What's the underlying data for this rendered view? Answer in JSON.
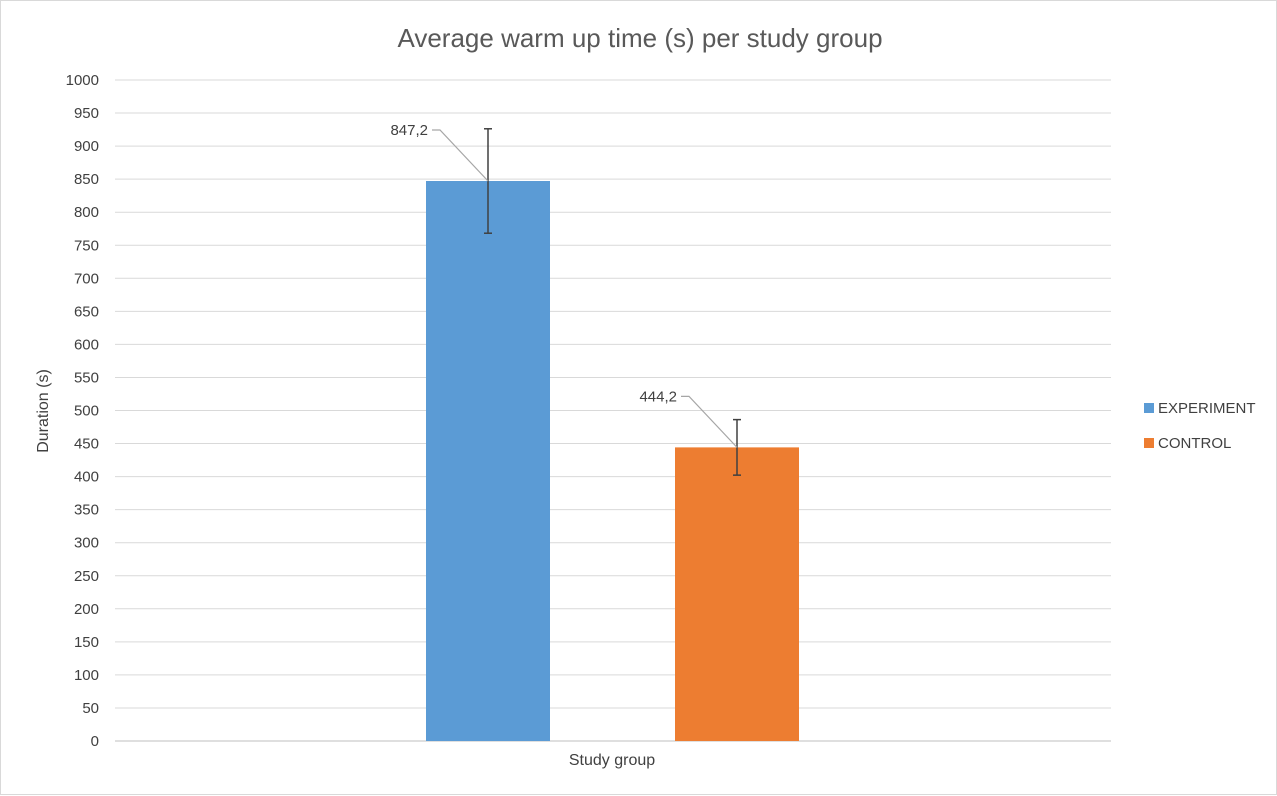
{
  "chart_data": {
    "type": "bar",
    "title": "Average warm up time (s) per study group",
    "xlabel": "Study group",
    "ylabel": "Duration (s)",
    "categories": [
      "Study group"
    ],
    "ylim": [
      0,
      1000
    ],
    "ytick_step": 50,
    "grid": true,
    "legend_position": "right",
    "series": [
      {
        "name": "EXPERIMENT",
        "values": [
          847.2
        ],
        "error": [
          79
        ],
        "label": "847,2",
        "color": "#5b9bd5"
      },
      {
        "name": "CONTROL",
        "values": [
          444.2
        ],
        "error": [
          42
        ],
        "label": "444,2",
        "color": "#ed7d31"
      }
    ]
  }
}
